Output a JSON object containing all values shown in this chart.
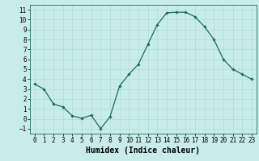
{
  "x": [
    0,
    1,
    2,
    3,
    4,
    5,
    6,
    7,
    8,
    9,
    10,
    11,
    12,
    13,
    14,
    15,
    16,
    17,
    18,
    19,
    20,
    21,
    22,
    23
  ],
  "y": [
    3.5,
    3.0,
    1.5,
    1.2,
    0.3,
    0.05,
    0.35,
    -1.0,
    0.2,
    3.3,
    4.5,
    5.5,
    7.5,
    9.5,
    10.7,
    10.75,
    10.75,
    10.3,
    9.3,
    8.0,
    6.0,
    5.0,
    4.5,
    4.0
  ],
  "line_color": "#1a6b5a",
  "marker": "D",
  "marker_size": 1.8,
  "bg_color": "#c8ecea",
  "grid_color": "#a8d8d4",
  "xlabel": "Humidex (Indice chaleur)",
  "xlabel_fontsize": 7,
  "xtick_labels": [
    "0",
    "1",
    "2",
    "3",
    "4",
    "5",
    "6",
    "7",
    "8",
    "9",
    "10",
    "11",
    "12",
    "13",
    "14",
    "15",
    "16",
    "17",
    "18",
    "19",
    "20",
    "21",
    "22",
    "23"
  ],
  "ylim": [
    -1.5,
    11.5
  ],
  "xlim": [
    -0.5,
    23.5
  ],
  "yticks": [
    -1,
    0,
    1,
    2,
    3,
    4,
    5,
    6,
    7,
    8,
    9,
    10,
    11
  ],
  "tick_fontsize": 5.5,
  "line_width": 0.9
}
